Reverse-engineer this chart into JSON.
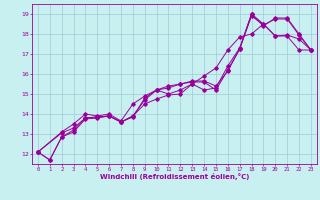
{
  "xlabel": "Windchill (Refroidissement éolien,°C)",
  "bg_color": "#c8f0f0",
  "grid_color": "#a0c8d8",
  "line_color": "#990099",
  "xlim": [
    -0.5,
    23.5
  ],
  "ylim": [
    11.5,
    19.5
  ],
  "xticks": [
    0,
    1,
    2,
    3,
    4,
    5,
    6,
    7,
    8,
    9,
    10,
    11,
    12,
    13,
    14,
    15,
    16,
    17,
    18,
    19,
    20,
    21,
    22,
    23
  ],
  "yticks": [
    12,
    13,
    14,
    15,
    16,
    17,
    18,
    19
  ],
  "line1_x": [
    0,
    1,
    2,
    3,
    4,
    5,
    6,
    7,
    8,
    9,
    10,
    11,
    12,
    13,
    14,
    15,
    16,
    17,
    18,
    19,
    20,
    21,
    22,
    23
  ],
  "line1_y": [
    12.1,
    11.7,
    12.85,
    13.1,
    13.75,
    13.8,
    13.9,
    13.6,
    13.9,
    14.5,
    14.75,
    14.95,
    15.0,
    15.5,
    15.9,
    16.3,
    17.2,
    17.85,
    18.0,
    18.5,
    17.9,
    17.9,
    17.2,
    17.2
  ],
  "line2_x": [
    0,
    1,
    2,
    3,
    4,
    5,
    6,
    7,
    8,
    9,
    10,
    11,
    12,
    13,
    14,
    15,
    16,
    17,
    18,
    19,
    20,
    21,
    22,
    23
  ],
  "line2_y": [
    12.1,
    11.7,
    12.85,
    13.2,
    13.8,
    13.85,
    13.9,
    13.6,
    13.9,
    14.7,
    15.2,
    15.0,
    15.2,
    15.5,
    15.2,
    15.3,
    16.4,
    17.3,
    19.0,
    18.5,
    17.9,
    17.95,
    17.75,
    17.2
  ],
  "line3_x": [
    0,
    2,
    3,
    4,
    5,
    6,
    7,
    8,
    9,
    10,
    11,
    12,
    13,
    14,
    15,
    16,
    17,
    18,
    19,
    20,
    21,
    22,
    23
  ],
  "line3_y": [
    12.1,
    13.05,
    13.3,
    13.8,
    13.85,
    13.9,
    13.6,
    13.85,
    14.8,
    15.2,
    15.3,
    15.5,
    15.6,
    15.6,
    15.2,
    16.2,
    17.25,
    19.0,
    18.4,
    18.8,
    18.8,
    18.0,
    17.2
  ],
  "line4_x": [
    0,
    2,
    3,
    4,
    5,
    6,
    7,
    8,
    9,
    10,
    11,
    12,
    13,
    14,
    15,
    16,
    17,
    18,
    19,
    20,
    21,
    22,
    23
  ],
  "line4_y": [
    12.1,
    13.1,
    13.5,
    14.0,
    13.9,
    14.0,
    13.65,
    14.5,
    14.9,
    15.2,
    15.4,
    15.5,
    15.65,
    15.65,
    15.4,
    16.15,
    17.25,
    18.9,
    18.45,
    18.75,
    18.75,
    17.95,
    17.2
  ]
}
